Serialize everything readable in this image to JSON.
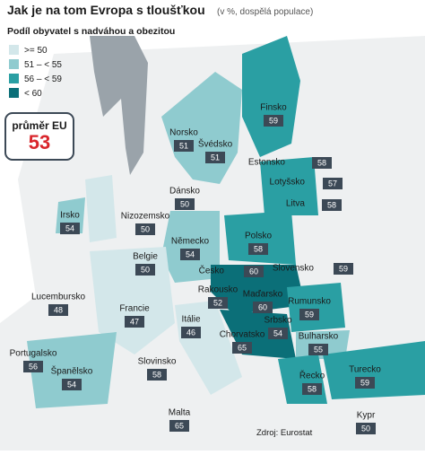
{
  "header": {
    "title": "Jak je na tom Evropa s tloušťkou",
    "subtitle": "(v %, dospělá populace)"
  },
  "legend": {
    "title": "Podíl obyvatel s nadváhou a obezitou",
    "items": [
      {
        "label": ">= 50",
        "color": "#d3e7ea"
      },
      {
        "label": "51 – < 55",
        "color": "#8fcbcf"
      },
      {
        "label": "56 – < 59",
        "color": "#2a9fa3"
      },
      {
        "label": "< 60",
        "color": "#0b6f78"
      }
    ]
  },
  "average": {
    "label": "průměr EU",
    "value": 53
  },
  "countries": [
    {
      "name": "Finsko",
      "value": 59
    },
    {
      "name": "Norsko",
      "value": 51
    },
    {
      "name": "Švédsko",
      "value": 51
    },
    {
      "name": "Estonsko",
      "value": 58
    },
    {
      "name": "Lotyšsko",
      "value": 57
    },
    {
      "name": "Dánsko",
      "value": 50
    },
    {
      "name": "Nizozemsko",
      "value": 50
    },
    {
      "name": "Irsko",
      "value": 54
    },
    {
      "name": "Litva",
      "value": 58
    },
    {
      "name": "Německo",
      "value": 54
    },
    {
      "name": "Polsko",
      "value": 58
    },
    {
      "name": "Belgie",
      "value": 50
    },
    {
      "name": "Česko",
      "value": 60
    },
    {
      "name": "Slovensko",
      "value": 59
    },
    {
      "name": "Lucembursko",
      "value": 48
    },
    {
      "name": "Rakousko",
      "value": 52
    },
    {
      "name": "Maďarsko",
      "value": 60
    },
    {
      "name": "Rumunsko",
      "value": 59
    },
    {
      "name": "Francie",
      "value": 47
    },
    {
      "name": "Itálie",
      "value": 46
    },
    {
      "name": "Srbsko",
      "value": 54
    },
    {
      "name": "Chorvatsko",
      "value": 65
    },
    {
      "name": "Bulharsko",
      "value": 55
    },
    {
      "name": "Portugalsko",
      "value": 56
    },
    {
      "name": "Španělsko",
      "value": 54
    },
    {
      "name": "Slovinsko",
      "value": 58
    },
    {
      "name": "Řecko",
      "value": 58
    },
    {
      "name": "Turecko",
      "value": 59
    },
    {
      "name": "Malta",
      "value": 65
    },
    {
      "name": "Kypr",
      "value": 50
    }
  ],
  "source": "Zdroj: Eurostat"
}
